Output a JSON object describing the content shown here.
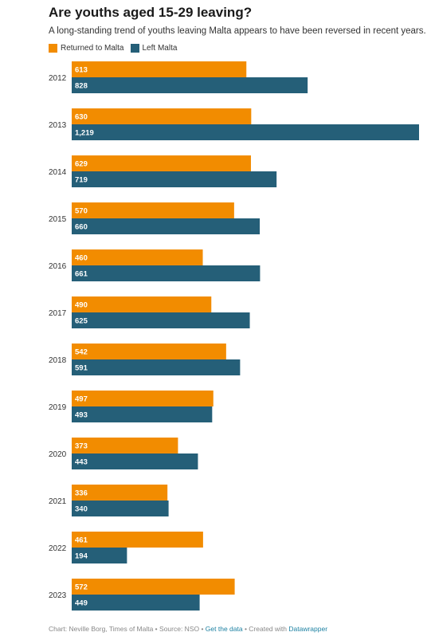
{
  "header": {
    "title": "Are youths aged 15-29 leaving?",
    "subtitle": "A long-standing trend of youths leaving Malta appears to have been reversed in recent years."
  },
  "legend": {
    "items": [
      {
        "label": "Returned to Malta",
        "color": "#f28c00"
      },
      {
        "label": "Left Malta",
        "color": "#255f78"
      }
    ]
  },
  "footer": {
    "credit": "Chart: Neville Borg, Times of Malta • Source: NSO • ",
    "get_data_label": "Get the data",
    "separator": " • Created with ",
    "tool_label": "Datawrapper"
  },
  "chart_data": {
    "type": "bar",
    "orientation": "horizontal",
    "categories": [
      "2012",
      "2013",
      "2014",
      "2015",
      "2016",
      "2017",
      "2018",
      "2019",
      "2020",
      "2021",
      "2022",
      "2023"
    ],
    "series": [
      {
        "name": "Returned to Malta",
        "color": "#f28c00",
        "values": [
          613,
          630,
          629,
          570,
          460,
          490,
          542,
          497,
          373,
          336,
          461,
          572
        ],
        "labels": [
          "613",
          "630",
          "629",
          "570",
          "460",
          "490",
          "542",
          "497",
          "373",
          "336",
          "461",
          "572"
        ]
      },
      {
        "name": "Left Malta",
        "color": "#255f78",
        "values": [
          828,
          1219,
          719,
          660,
          661,
          625,
          591,
          493,
          443,
          340,
          194,
          449
        ],
        "labels": [
          "828",
          "1,219",
          "719",
          "660",
          "661",
          "625",
          "591",
          "493",
          "443",
          "340",
          "194",
          "449"
        ]
      }
    ],
    "xlim": [
      0,
      1219
    ],
    "grid": false,
    "legend_position": "top-left"
  }
}
